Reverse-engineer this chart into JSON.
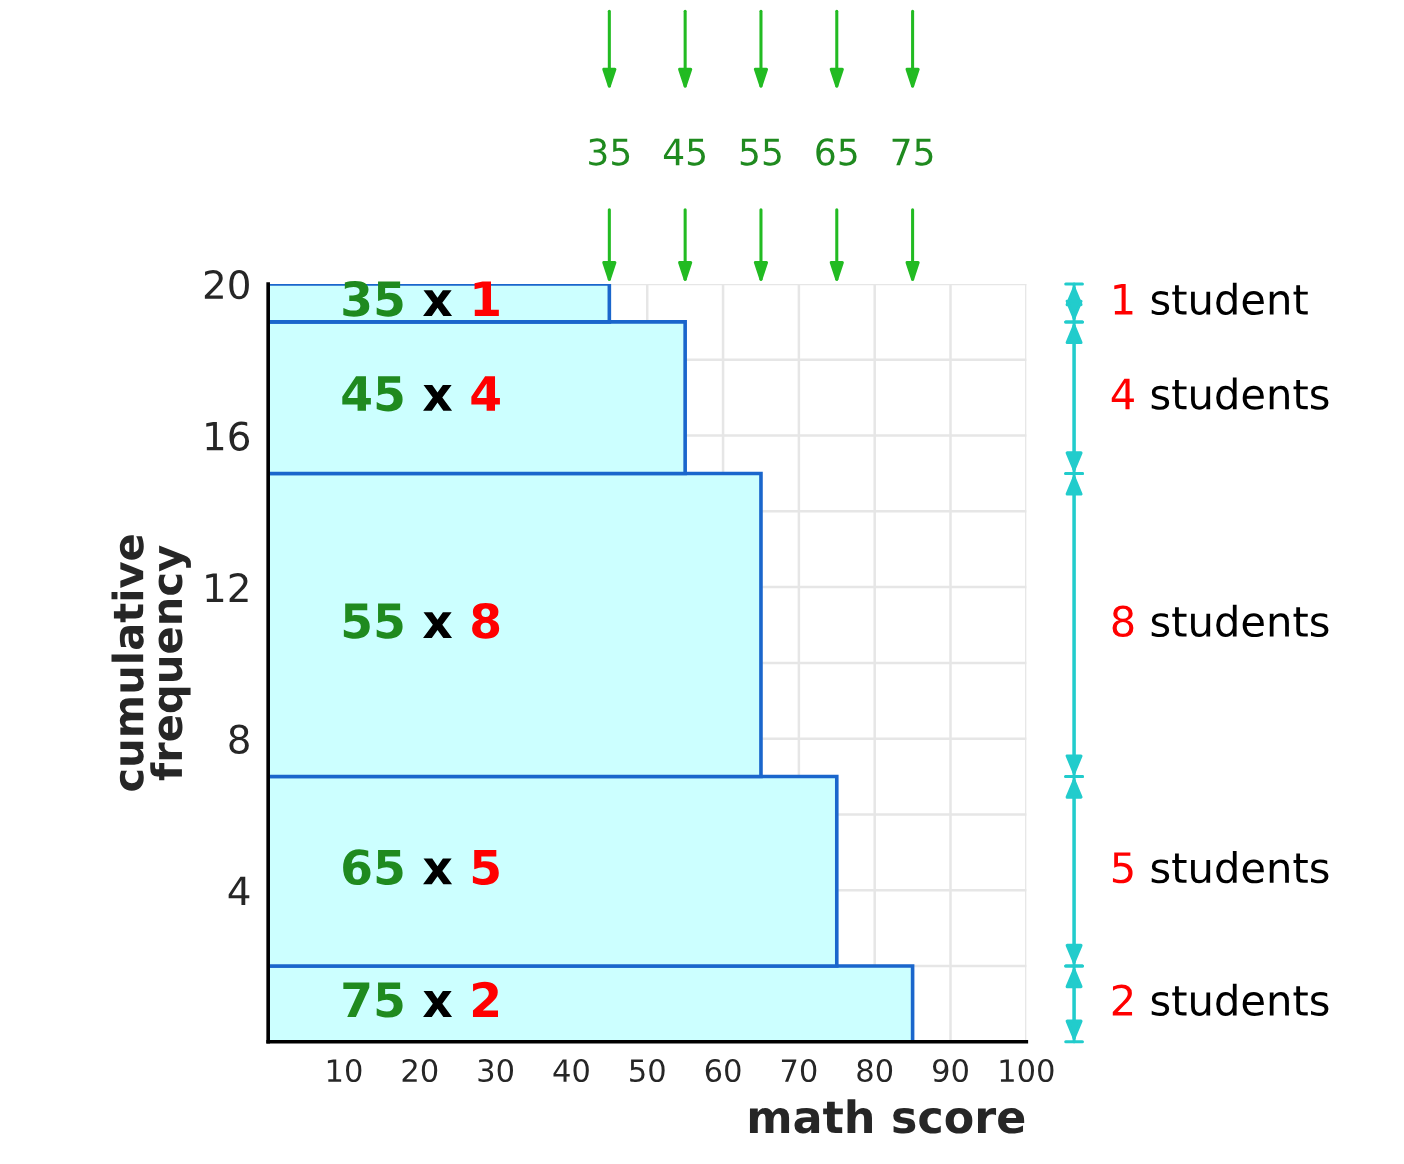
{
  "chart_data": {
    "type": "histogram",
    "orientation": "horizontal",
    "bins": [
      0,
      2,
      7,
      15,
      19,
      20
    ],
    "values": [
      85,
      75,
      65,
      55,
      45
    ],
    "color": "#ccffff",
    "xlabel": "math score",
    "ylabel": "cumulative\nfrequency",
    "xlim": [
      0,
      100
    ],
    "xticks": [
      10,
      20,
      30,
      40,
      50,
      60,
      70,
      80,
      90,
      100
    ],
    "ylim": [
      0,
      20
    ],
    "yticks": [
      4,
      8,
      12,
      16,
      20
    ],
    "grid": true,
    "annotations": [
      "75 x 2",
      "65 x 5",
      "55 x 8",
      "45 x 4",
      "35 x 1",
      "2 students",
      "5 students",
      "8 students",
      "4 students",
      "1 student",
      "75",
      "65",
      "55",
      "45",
      "35"
    ]
  }
}
